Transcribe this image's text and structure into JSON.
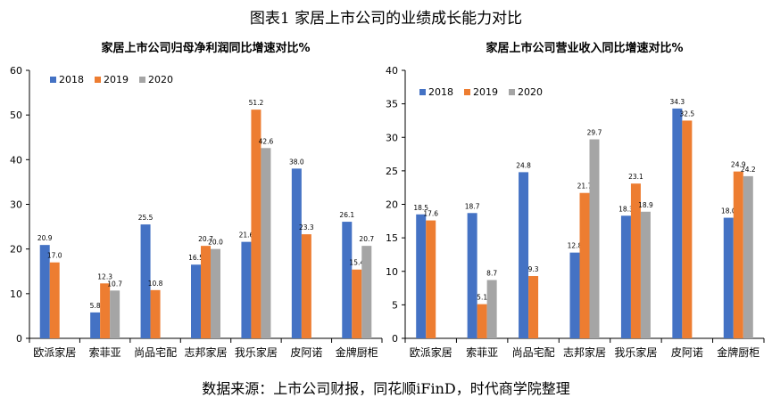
{
  "figure_title": "图表1 家居上市公司的业绩成长能力对比",
  "source_note": "数据来源：上市公司财报，同花顺iFinD，时代商学院整理",
  "colors": {
    "2018": "#4472c4",
    "2019": "#ed7d31",
    "2020": "#a5a5a5",
    "axis": "#000000"
  },
  "chart_data": [
    {
      "type": "bar",
      "title": "家居上市公司归母净利润同比增速对比%",
      "categories": [
        "欧派家居",
        "索菲亚",
        "尚品宅配",
        "志邦家居",
        "我乐家居",
        "皮阿诺",
        "金牌厨柜"
      ],
      "series": [
        {
          "name": "2018",
          "values": [
            20.9,
            5.8,
            25.5,
            16.5,
            21.6,
            38.0,
            26.1
          ]
        },
        {
          "name": "2019",
          "values": [
            17.0,
            12.3,
            10.8,
            20.7,
            51.2,
            23.3,
            15.4
          ]
        },
        {
          "name": "2020",
          "values": [
            null,
            10.7,
            null,
            20.0,
            42.6,
            null,
            20.7
          ]
        }
      ],
      "ylim": [
        0,
        60
      ],
      "yticks": [
        0,
        10,
        20,
        30,
        40,
        50,
        60
      ],
      "legend": "top-left",
      "grid": false
    },
    {
      "type": "bar",
      "title": "家居上市公司营业收入同比增速对比%",
      "categories": [
        "欧派家居",
        "索菲亚",
        "尚品宅配",
        "志邦家居",
        "我乐家居",
        "皮阿诺",
        "金牌厨柜"
      ],
      "series": [
        {
          "name": "2018",
          "values": [
            18.5,
            18.7,
            24.8,
            12.8,
            18.3,
            34.3,
            18.0
          ]
        },
        {
          "name": "2019",
          "values": [
            17.6,
            5.1,
            9.3,
            21.7,
            23.1,
            32.5,
            24.9
          ]
        },
        {
          "name": "2020",
          "values": [
            null,
            8.7,
            null,
            29.7,
            18.9,
            null,
            24.2
          ]
        }
      ],
      "ylim": [
        0,
        40
      ],
      "yticks": [
        0,
        5,
        10,
        15,
        20,
        25,
        30,
        35,
        40
      ],
      "legend": "top-left",
      "grid": false
    }
  ]
}
